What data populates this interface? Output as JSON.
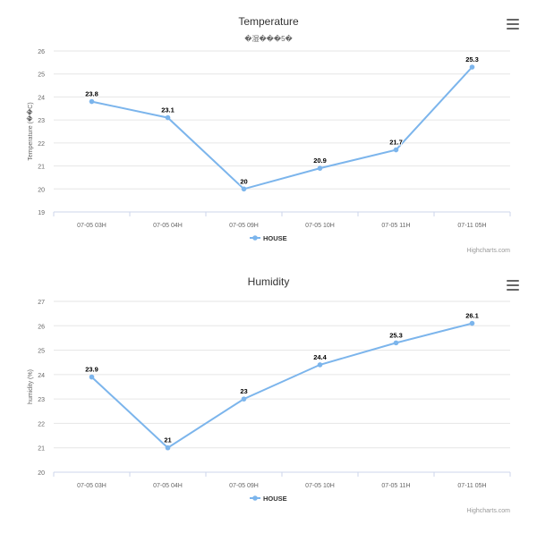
{
  "chart_data": [
    {
      "type": "line",
      "title": "Temperature",
      "subtitle": "�湿���5�",
      "ylabel": "Temperature (��C)",
      "xlabel": "",
      "categories": [
        "07-05 03H",
        "07-05 04H",
        "07-05 09H",
        "07-05 10H",
        "07-05 11H",
        "07-11 05H"
      ],
      "series": [
        {
          "name": "HOUSE",
          "values": [
            23.8,
            23.1,
            20,
            20.9,
            21.7,
            25.3
          ]
        }
      ],
      "data_labels": [
        "23.8",
        "23.1",
        "20",
        "20.9",
        "21.7",
        "25.3"
      ],
      "ylim": [
        19,
        26
      ],
      "y_ticks": [
        "19",
        "20",
        "21",
        "22",
        "23",
        "24",
        "25",
        "26"
      ],
      "grid": true,
      "legend_position": "bottom-center",
      "series_color": "#7cb5ec",
      "credits": "Highcharts.com"
    },
    {
      "type": "line",
      "title": "Humidity",
      "subtitle": "",
      "ylabel": "humidity (%)",
      "xlabel": "",
      "categories": [
        "07-05 03H",
        "07-05 04H",
        "07-05 09H",
        "07-05 10H",
        "07-05 11H",
        "07-11 05H"
      ],
      "series": [
        {
          "name": "HOUSE",
          "values": [
            23.9,
            21,
            23,
            24.4,
            25.3,
            26.1
          ]
        }
      ],
      "data_labels": [
        "23.9",
        "21",
        "23",
        "24.4",
        "25.3",
        "26.1"
      ],
      "ylim": [
        20,
        27
      ],
      "y_ticks": [
        "20",
        "21",
        "22",
        "23",
        "24",
        "25",
        "26",
        "27"
      ],
      "grid": true,
      "legend_position": "bottom-center",
      "series_color": "#7cb5ec",
      "credits": "Highcharts.com"
    }
  ]
}
